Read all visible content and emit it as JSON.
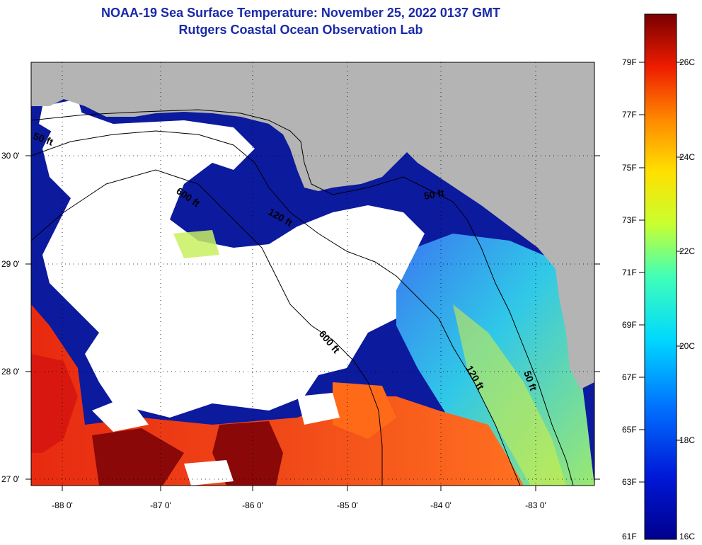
{
  "title": {
    "line1": "NOAA-19 Sea Surface Temperature:  November 25, 2022 0137 GMT",
    "line2": "Rutgers Coastal Ocean Observation Lab"
  },
  "map": {
    "longitude_ticks": [
      "-88 0'",
      "-87 0'",
      "-86 0'",
      "-85 0'",
      "-84 0'",
      "-83 0'"
    ],
    "latitude_ticks": [
      "30 0'",
      "29 0'",
      "28 0'",
      "27 0'"
    ],
    "depth_contour_labels": [
      "50 ft",
      "600 ft",
      "120 ft",
      "50 ft",
      "600 ft",
      "120 ft",
      "50 ft"
    ],
    "colors": {
      "land": "#b4b4b4",
      "cloud": "#ffffff",
      "cold_water": "#0c1a9e",
      "warm_water": "#e8200c",
      "hot_water": "#8a0808"
    }
  },
  "colorbar": {
    "fahrenheit_labels": [
      "79F",
      "77F",
      "75F",
      "73F",
      "71F",
      "69F",
      "67F",
      "65F",
      "63F",
      "61F"
    ],
    "celsius_labels": [
      "26C",
      "24C",
      "22C",
      "20C",
      "18C",
      "16C"
    ],
    "range_c": [
      16,
      27
    ]
  }
}
